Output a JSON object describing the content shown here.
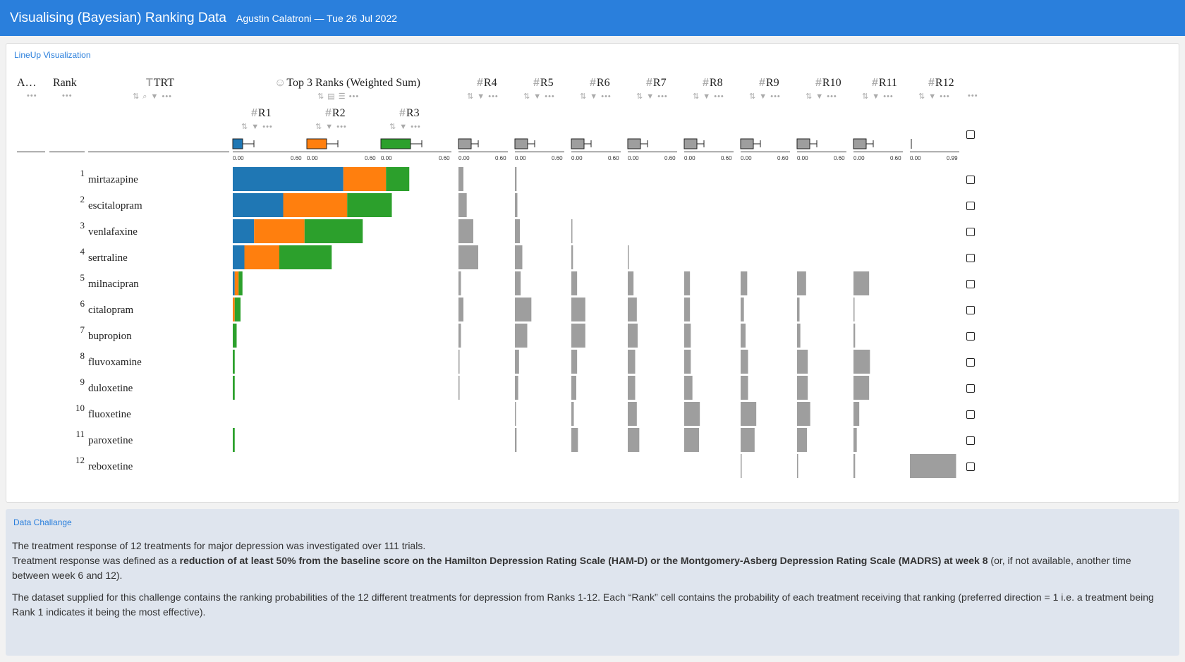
{
  "header": {
    "title": "Visualising (Bayesian) Ranking Data",
    "subtitle": "Agustin Calatroni — Tue 26 Jul 2022"
  },
  "lineup_card": {
    "title": "LineUp Visualization"
  },
  "lineup": {
    "col_a": "A…",
    "col_rank": "Rank",
    "col_trt": "TRT",
    "col_combined": "Top 3 Ranks (Weighted Sum)",
    "rank_cols": [
      "R1",
      "R2",
      "R3",
      "R4",
      "R5",
      "R6",
      "R7",
      "R8",
      "R9",
      "R10",
      "R11",
      "R12"
    ],
    "axis_min": "0.00",
    "axis_max": "0.60",
    "axis_max_r12": "0.99",
    "colors": {
      "R1": "#1f77b4",
      "R2": "#ff7f0e",
      "R3": "#2ca02c",
      "other": "#9e9e9e"
    },
    "rows": [
      {
        "rank": "1",
        "trt": "mirtazapine",
        "r": [
          0.57,
          0.22,
          0.12,
          0.06,
          0.02,
          0.0,
          0.0,
          0.0,
          0.0,
          0.0,
          0.0,
          0.0
        ]
      },
      {
        "rank": "2",
        "trt": "escitalopram",
        "r": [
          0.26,
          0.33,
          0.23,
          0.1,
          0.03,
          0.0,
          0.0,
          0.0,
          0.0,
          0.0,
          0.0,
          0.0
        ]
      },
      {
        "rank": "3",
        "trt": "venlafaxine",
        "r": [
          0.11,
          0.26,
          0.3,
          0.18,
          0.06,
          0.01,
          0.0,
          0.0,
          0.0,
          0.0,
          0.0,
          0.0
        ]
      },
      {
        "rank": "4",
        "trt": "sertraline",
        "r": [
          0.06,
          0.18,
          0.27,
          0.24,
          0.09,
          0.02,
          0.01,
          0.0,
          0.0,
          0.0,
          0.0,
          0.0
        ]
      },
      {
        "rank": "5",
        "trt": "milnacipran",
        "r": [
          0.01,
          0.02,
          0.02,
          0.03,
          0.07,
          0.07,
          0.07,
          0.07,
          0.08,
          0.11,
          0.19,
          0.0
        ]
      },
      {
        "rank": "6",
        "trt": "citalopram",
        "r": [
          0.0,
          0.01,
          0.03,
          0.06,
          0.2,
          0.17,
          0.11,
          0.07,
          0.04,
          0.03,
          0.01,
          0.0
        ]
      },
      {
        "rank": "7",
        "trt": "bupropion",
        "r": [
          0.0,
          0.0,
          0.02,
          0.03,
          0.15,
          0.17,
          0.12,
          0.08,
          0.06,
          0.04,
          0.02,
          0.0
        ]
      },
      {
        "rank": "8",
        "trt": "fluvoxamine",
        "r": [
          0.0,
          0.0,
          0.01,
          0.01,
          0.05,
          0.07,
          0.09,
          0.08,
          0.09,
          0.13,
          0.2,
          0.0
        ]
      },
      {
        "rank": "9",
        "trt": "duloxetine",
        "r": [
          0.0,
          0.0,
          0.01,
          0.01,
          0.04,
          0.06,
          0.09,
          0.1,
          0.09,
          0.13,
          0.19,
          0.0
        ]
      },
      {
        "rank": "10",
        "trt": "fluoxetine",
        "r": [
          0.0,
          0.0,
          0.0,
          0.0,
          0.01,
          0.03,
          0.11,
          0.19,
          0.19,
          0.16,
          0.07,
          0.0
        ]
      },
      {
        "rank": "11",
        "trt": "paroxetine",
        "r": [
          0.0,
          0.0,
          0.01,
          0.0,
          0.02,
          0.08,
          0.14,
          0.18,
          0.17,
          0.12,
          0.04,
          0.0
        ]
      },
      {
        "rank": "12",
        "trt": "reboxetine",
        "r": [
          0.0,
          0.0,
          0.0,
          0.0,
          0.0,
          0.0,
          0.0,
          0.0,
          0.01,
          0.01,
          0.02,
          0.9
        ]
      }
    ]
  },
  "challenge": {
    "title": "Data Challange",
    "line1": "The treatment response of 12 treatments for major depression was investigated over 111 trials.",
    "line2_pre": "Treatment response was defined as a ",
    "line2_bold": "reduction of at least 50% from the baseline score on the Hamilton Depression Rating Scale (HAM-D) or the Montgomery-Asberg Depression Rating Scale (MADRS) at week 8",
    "line2_post": " (or, if not available, another time between week 6 and 12).",
    "para2": "The dataset supplied for this challenge contains the ranking probabilities of the 12 different treatments for depression from Ranks 1-12. Each “Rank” cell contains the probability of each treatment receiving that ranking (preferred direction = 1 i.e. a treatment being Rank 1 indicates it being the most effective)."
  }
}
